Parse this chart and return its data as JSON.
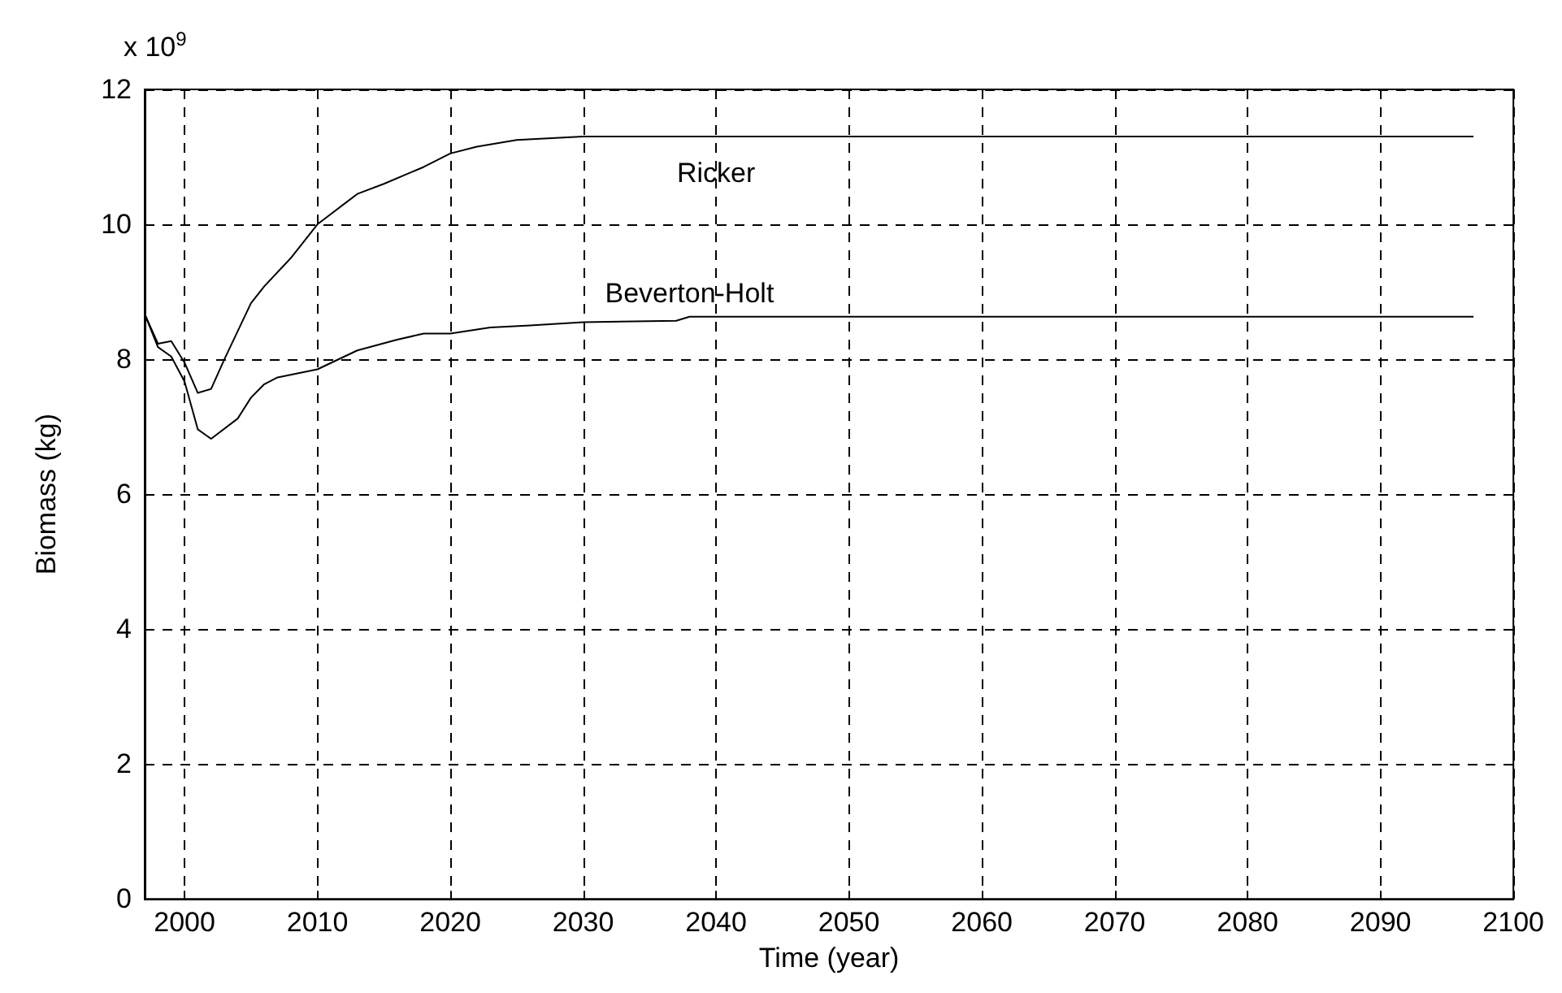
{
  "chart_data": {
    "type": "line",
    "xlabel": "Time (year)",
    "ylabel": "Biomass (kg)",
    "annotations": [
      "x 10$^{9}$"
    ],
    "xlim": [
      1997,
      2100
    ],
    "xticks": [
      2000,
      2010,
      2020,
      2030,
      2040,
      2050,
      2060,
      2070,
      2080,
      2090,
      2100
    ],
    "ylim": [
      0,
      12
    ],
    "yticks": [
      0,
      2,
      4,
      6,
      8,
      10,
      12
    ],
    "grid": true,
    "legend": false,
    "marker": "none",
    "line_style": "solid",
    "series": [
      {
        "name": "Ricker",
        "color": "#000000",
        "x": [
          1997,
          1998,
          1999,
          2000,
          2001,
          2002,
          2003,
          2005,
          2006,
          2008,
          2010,
          2012,
          2013,
          2015,
          2018,
          2020,
          2022,
          2025,
          2030,
          2040,
          2060,
          2080,
          2097
        ],
        "values": [
          8.67,
          8.23,
          8.27,
          7.95,
          7.5,
          7.56,
          8.0,
          8.83,
          9.08,
          9.5,
          10.0,
          10.3,
          10.45,
          10.6,
          10.85,
          11.05,
          11.15,
          11.25,
          11.3,
          11.3,
          11.3,
          11.3,
          11.3
        ]
      },
      {
        "name": "Beverton-Holt",
        "color": "#000000",
        "x": [
          1997,
          1998,
          1999,
          2000,
          2001,
          2002,
          2004,
          2005,
          2006,
          2007,
          2010,
          2013,
          2016,
          2018,
          2020,
          2023,
          2026,
          2030,
          2037,
          2038,
          2050,
          2070,
          2097
        ],
        "values": [
          8.67,
          8.18,
          8.04,
          7.67,
          6.96,
          6.82,
          7.12,
          7.43,
          7.63,
          7.73,
          7.85,
          8.13,
          8.29,
          8.38,
          8.38,
          8.47,
          8.5,
          8.55,
          8.57,
          8.63,
          8.63,
          8.63,
          8.63
        ]
      }
    ]
  }
}
